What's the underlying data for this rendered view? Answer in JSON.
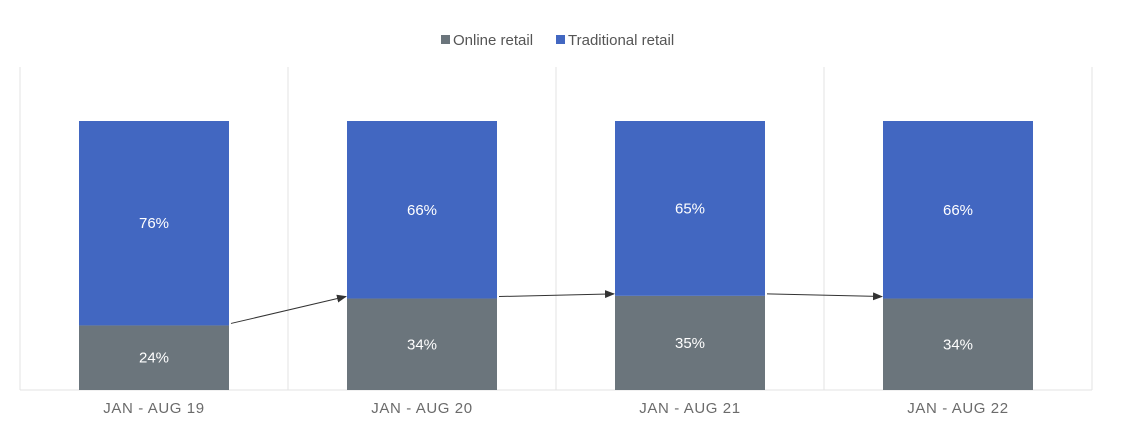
{
  "colors": {
    "online": "#6b757c",
    "traditional": "#4267c1",
    "grid": "#e3e3e3",
    "axis_text": "#6b6b6b",
    "legend_text": "#555555",
    "label_text": "#ffffff",
    "arrow": "#333333"
  },
  "chart_data": {
    "type": "bar",
    "stacked": true,
    "categories": [
      "JAN - AUG 19",
      "JAN - AUG 20",
      "JAN - AUG 21",
      "JAN - AUG 22"
    ],
    "series": [
      {
        "name": "Online retail",
        "values": [
          24,
          34,
          35,
          34
        ],
        "labels": [
          "24%",
          "34%",
          "35%",
          "34%"
        ]
      },
      {
        "name": "Traditional retail",
        "values": [
          76,
          66,
          65,
          66
        ],
        "labels": [
          "76%",
          "66%",
          "65%",
          "66%"
        ]
      }
    ],
    "ylim": [
      0,
      100
    ],
    "unit": "%",
    "legend": "top-center",
    "grid": "vertical",
    "annotations": "arrows connecting the top of each Online retail segment to the next column"
  }
}
